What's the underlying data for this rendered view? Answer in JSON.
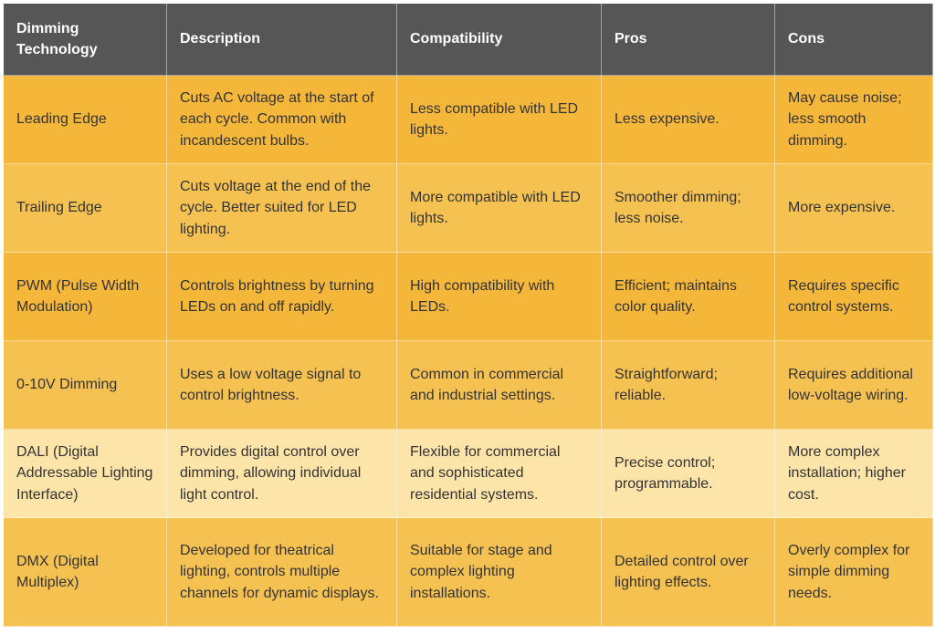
{
  "table": {
    "columns": [
      "Dimming Technology",
      "Description",
      "Compatibility",
      "Pros",
      "Cons"
    ],
    "rows": [
      [
        "Leading Edge",
        "Cuts AC voltage at the start of each cycle. Common with incandescent bulbs.",
        "Less compatible with LED lights.",
        "Less expensive.",
        "May cause noise; less smooth dimming."
      ],
      [
        "Trailing Edge",
        "Cuts voltage at the end of the cycle. Better suited for LED lighting.",
        "More compatible with LED lights.",
        "Smoother dimming; less noise.",
        "More expensive."
      ],
      [
        "PWM (Pulse Width Modulation)",
        "Controls brightness by turning LEDs on and off rapidly.",
        "High compatibility with LEDs.",
        "Efficient; maintains color quality.",
        "Requires specific control systems."
      ],
      [
        "0-10V Dimming",
        "Uses a low voltage signal to control brightness.",
        "Common in commercial and industrial settings.",
        "Straightforward; reliable.",
        "Requires additional low-voltage wiring."
      ],
      [
        "DALI (Digital Addressable Lighting Interface)",
        "Provides digital control over dimming, allowing individual light control.",
        "Flexible for commercial and sophisticated residential systems.",
        "Precise control; programmable.",
        "More complex installation; higher cost."
      ],
      [
        "DMX (Digital Multiplex)",
        "Developed for theatrical lighting, controls multiple channels for dynamic displays.",
        "Suitable for stage and complex lighting installations.",
        "Detailed control over lighting effects.",
        "Overly complex for simple dimming needs."
      ]
    ]
  }
}
